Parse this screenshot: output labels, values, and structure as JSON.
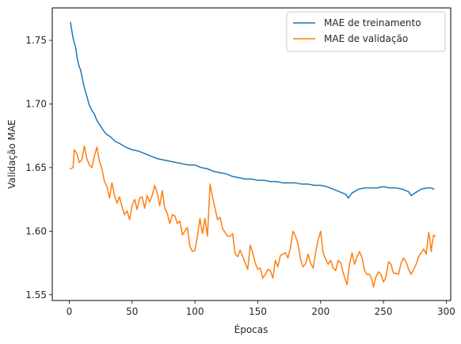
{
  "chart_data": {
    "type": "line",
    "title": "",
    "xlabel": "Épocas",
    "ylabel": "Validação MAE",
    "xlim": [
      -13.5,
      303.5
    ],
    "ylim": [
      1.5455,
      1.7755
    ],
    "xticks": [
      0,
      50,
      100,
      150,
      200,
      250,
      300
    ],
    "yticks": [
      1.55,
      1.6,
      1.65,
      1.7,
      1.75
    ],
    "ytick_labels": [
      "1.55",
      "1.60",
      "1.65",
      "1.70",
      "1.75"
    ],
    "grid": false,
    "legend_position": "top-right",
    "series": [
      {
        "name": "MAE de treinamento",
        "color": "#1f77b4",
        "points": [
          [
            1,
            1.764
          ],
          [
            2,
            1.758
          ],
          [
            3,
            1.752
          ],
          [
            4,
            1.748
          ],
          [
            5,
            1.745
          ],
          [
            6,
            1.738
          ],
          [
            7,
            1.733
          ],
          [
            8,
            1.729
          ],
          [
            9,
            1.727
          ],
          [
            10,
            1.722
          ],
          [
            12,
            1.713
          ],
          [
            14,
            1.706
          ],
          [
            16,
            1.699
          ],
          [
            18,
            1.695
          ],
          [
            20,
            1.692
          ],
          [
            22,
            1.687
          ],
          [
            24,
            1.684
          ],
          [
            26,
            1.681
          ],
          [
            28,
            1.678
          ],
          [
            30,
            1.676
          ],
          [
            33,
            1.674
          ],
          [
            36,
            1.671
          ],
          [
            40,
            1.669
          ],
          [
            45,
            1.666
          ],
          [
            50,
            1.664
          ],
          [
            55,
            1.663
          ],
          [
            60,
            1.661
          ],
          [
            65,
            1.659
          ],
          [
            70,
            1.657
          ],
          [
            75,
            1.656
          ],
          [
            80,
            1.655
          ],
          [
            85,
            1.654
          ],
          [
            90,
            1.653
          ],
          [
            95,
            1.652
          ],
          [
            100,
            1.652
          ],
          [
            105,
            1.65
          ],
          [
            110,
            1.649
          ],
          [
            115,
            1.647
          ],
          [
            120,
            1.646
          ],
          [
            125,
            1.645
          ],
          [
            130,
            1.643
          ],
          [
            135,
            1.642
          ],
          [
            140,
            1.641
          ],
          [
            145,
            1.641
          ],
          [
            150,
            1.64
          ],
          [
            155,
            1.64
          ],
          [
            160,
            1.639
          ],
          [
            165,
            1.639
          ],
          [
            170,
            1.638
          ],
          [
            175,
            1.638
          ],
          [
            180,
            1.638
          ],
          [
            185,
            1.637
          ],
          [
            190,
            1.637
          ],
          [
            195,
            1.636
          ],
          [
            200,
            1.636
          ],
          [
            205,
            1.635
          ],
          [
            210,
            1.633
          ],
          [
            215,
            1.631
          ],
          [
            220,
            1.629
          ],
          [
            222,
            1.626
          ],
          [
            225,
            1.63
          ],
          [
            230,
            1.633
          ],
          [
            235,
            1.634
          ],
          [
            240,
            1.634
          ],
          [
            245,
            1.634
          ],
          [
            250,
            1.635
          ],
          [
            255,
            1.634
          ],
          [
            260,
            1.634
          ],
          [
            265,
            1.633
          ],
          [
            270,
            1.631
          ],
          [
            272,
            1.628
          ],
          [
            275,
            1.63
          ],
          [
            280,
            1.633
          ],
          [
            285,
            1.634
          ],
          [
            288,
            1.634
          ],
          [
            290,
            1.633
          ]
        ]
      },
      {
        "name": "MAE de validação",
        "color": "#ff7f0e",
        "points": [
          [
            1,
            1.649
          ],
          [
            3,
            1.65
          ],
          [
            4,
            1.664
          ],
          [
            6,
            1.661
          ],
          [
            8,
            1.654
          ],
          [
            10,
            1.656
          ],
          [
            12,
            1.667
          ],
          [
            14,
            1.657
          ],
          [
            16,
            1.652
          ],
          [
            18,
            1.65
          ],
          [
            20,
            1.659
          ],
          [
            22,
            1.666
          ],
          [
            24,
            1.655
          ],
          [
            26,
            1.649
          ],
          [
            28,
            1.639
          ],
          [
            30,
            1.635
          ],
          [
            32,
            1.626
          ],
          [
            34,
            1.638
          ],
          [
            36,
            1.628
          ],
          [
            38,
            1.622
          ],
          [
            40,
            1.627
          ],
          [
            42,
            1.619
          ],
          [
            44,
            1.613
          ],
          [
            46,
            1.616
          ],
          [
            48,
            1.609
          ],
          [
            50,
            1.62
          ],
          [
            52,
            1.625
          ],
          [
            54,
            1.617
          ],
          [
            56,
            1.626
          ],
          [
            58,
            1.627
          ],
          [
            60,
            1.618
          ],
          [
            62,
            1.628
          ],
          [
            64,
            1.623
          ],
          [
            66,
            1.628
          ],
          [
            68,
            1.636
          ],
          [
            70,
            1.63
          ],
          [
            72,
            1.62
          ],
          [
            74,
            1.632
          ],
          [
            76,
            1.618
          ],
          [
            78,
            1.614
          ],
          [
            80,
            1.606
          ],
          [
            82,
            1.613
          ],
          [
            84,
            1.612
          ],
          [
            86,
            1.606
          ],
          [
            88,
            1.608
          ],
          [
            90,
            1.597
          ],
          [
            92,
            1.6
          ],
          [
            94,
            1.603
          ],
          [
            96,
            1.588
          ],
          [
            98,
            1.584
          ],
          [
            100,
            1.585
          ],
          [
            102,
            1.596
          ],
          [
            104,
            1.61
          ],
          [
            106,
            1.598
          ],
          [
            108,
            1.61
          ],
          [
            110,
            1.596
          ],
          [
            112,
            1.637
          ],
          [
            114,
            1.627
          ],
          [
            116,
            1.618
          ],
          [
            118,
            1.609
          ],
          [
            120,
            1.611
          ],
          [
            122,
            1.602
          ],
          [
            124,
            1.599
          ],
          [
            126,
            1.596
          ],
          [
            128,
            1.596
          ],
          [
            130,
            1.598
          ],
          [
            132,
            1.582
          ],
          [
            134,
            1.58
          ],
          [
            136,
            1.585
          ],
          [
            138,
            1.58
          ],
          [
            140,
            1.575
          ],
          [
            142,
            1.57
          ],
          [
            144,
            1.589
          ],
          [
            146,
            1.583
          ],
          [
            148,
            1.575
          ],
          [
            150,
            1.57
          ],
          [
            152,
            1.571
          ],
          [
            154,
            1.563
          ],
          [
            156,
            1.566
          ],
          [
            158,
            1.57
          ],
          [
            160,
            1.569
          ],
          [
            162,
            1.563
          ],
          [
            164,
            1.577
          ],
          [
            166,
            1.572
          ],
          [
            168,
            1.581
          ],
          [
            170,
            1.582
          ],
          [
            172,
            1.583
          ],
          [
            174,
            1.579
          ],
          [
            176,
            1.587
          ],
          [
            178,
            1.6
          ],
          [
            180,
            1.596
          ],
          [
            182,
            1.59
          ],
          [
            184,
            1.578
          ],
          [
            186,
            1.572
          ],
          [
            188,
            1.574
          ],
          [
            190,
            1.582
          ],
          [
            192,
            1.575
          ],
          [
            194,
            1.571
          ],
          [
            196,
            1.583
          ],
          [
            198,
            1.593
          ],
          [
            200,
            1.6
          ],
          [
            202,
            1.583
          ],
          [
            204,
            1.578
          ],
          [
            206,
            1.574
          ],
          [
            208,
            1.577
          ],
          [
            210,
            1.571
          ],
          [
            212,
            1.569
          ],
          [
            214,
            1.577
          ],
          [
            216,
            1.575
          ],
          [
            218,
            1.567
          ],
          [
            220,
            1.561
          ],
          [
            221,
            1.558
          ],
          [
            223,
            1.574
          ],
          [
            225,
            1.583
          ],
          [
            227,
            1.574
          ],
          [
            229,
            1.58
          ],
          [
            231,
            1.584
          ],
          [
            233,
            1.579
          ],
          [
            235,
            1.569
          ],
          [
            237,
            1.566
          ],
          [
            239,
            1.566
          ],
          [
            241,
            1.561
          ],
          [
            242,
            1.556
          ],
          [
            244,
            1.564
          ],
          [
            246,
            1.568
          ],
          [
            248,
            1.566
          ],
          [
            250,
            1.56
          ],
          [
            252,
            1.564
          ],
          [
            254,
            1.576
          ],
          [
            256,
            1.574
          ],
          [
            258,
            1.567
          ],
          [
            260,
            1.567
          ],
          [
            262,
            1.566
          ],
          [
            264,
            1.575
          ],
          [
            266,
            1.579
          ],
          [
            268,
            1.576
          ],
          [
            270,
            1.57
          ],
          [
            272,
            1.566
          ],
          [
            274,
            1.57
          ],
          [
            276,
            1.574
          ],
          [
            278,
            1.58
          ],
          [
            280,
            1.583
          ],
          [
            282,
            1.586
          ],
          [
            284,
            1.582
          ],
          [
            286,
            1.599
          ],
          [
            287,
            1.593
          ],
          [
            288,
            1.584
          ],
          [
            289,
            1.592
          ],
          [
            290,
            1.597
          ],
          [
            291,
            1.596
          ]
        ]
      }
    ]
  }
}
